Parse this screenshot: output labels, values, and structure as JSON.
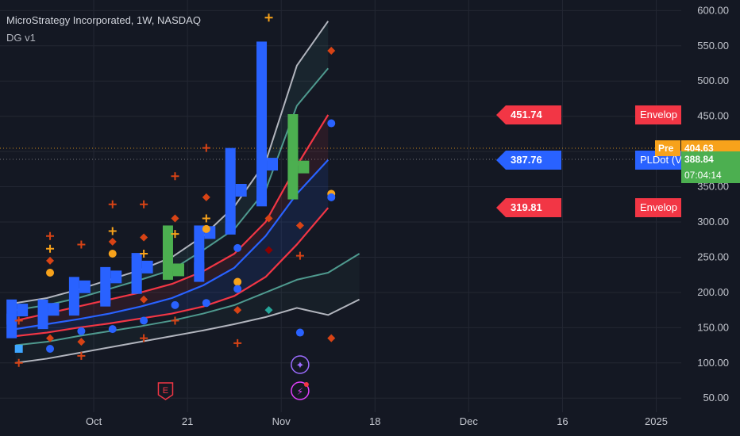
{
  "header": {
    "symbol_line": "MicroStrategy Incorporated, 1W, NASDAQ",
    "indicator_name": "DG v1"
  },
  "colors": {
    "background": "#141823",
    "grid": "#232733",
    "axis_text": "#c3c6ce",
    "bar_blue": "#2962ff",
    "bar_green": "#4caf50",
    "pldot": "#2962ff",
    "envelope_red": "#f23645",
    "band_teal": "#4f9a8f",
    "band_gray": "#b2b5be",
    "orange_marker": "#f7a21b",
    "dark_orange_marker": "#d84315",
    "price_line": "#f7a21b"
  },
  "chart_data": {
    "type": "line",
    "ylim": [
      30,
      615
    ],
    "y_ticks": [
      50,
      100,
      150,
      200,
      250,
      300,
      350,
      400,
      450,
      500,
      550,
      600
    ],
    "y_tick_labels": [
      "50.00",
      "100.00",
      "150.00",
      "200.00",
      "250.00",
      "300.00",
      "350.00",
      "400.00",
      "450.00",
      "500.00",
      "550.00",
      "600.00"
    ],
    "x_tick_labels": [
      "Oct",
      "21",
      "Nov",
      "18",
      "Dec",
      "16",
      "2025"
    ],
    "x_tick_index": [
      2.5,
      5.5,
      8.5,
      11.5,
      14.5,
      17.5,
      20.5
    ],
    "xlim": [
      -0.5,
      21.3
    ],
    "ohlc_bars": [
      {
        "open": 162,
        "high": 190,
        "low": 135,
        "close": 175,
        "color": "blue"
      },
      {
        "open": 165,
        "high": 190,
        "low": 148,
        "close": 176,
        "color": "blue"
      },
      {
        "open": 175,
        "high": 222,
        "low": 170,
        "close": 208,
        "color": "blue"
      },
      {
        "open": 192,
        "high": 236,
        "low": 180,
        "close": 222,
        "color": "blue"
      },
      {
        "open": 210,
        "high": 256,
        "low": 198,
        "close": 236,
        "color": "blue"
      },
      {
        "open": 238,
        "high": 295,
        "low": 218,
        "close": 232,
        "color": "green"
      },
      {
        "open": 235,
        "high": 295,
        "low": 215,
        "close": 285,
        "color": "blue"
      },
      {
        "open": 290,
        "high": 405,
        "low": 285,
        "close": 345,
        "color": "blue"
      },
      {
        "open": 330,
        "high": 556,
        "low": 330,
        "close": 382,
        "color": "blue"
      },
      {
        "open": 395,
        "high": 453,
        "low": 332,
        "close": 378,
        "color": "green"
      }
    ],
    "series": [
      {
        "name": "PLDot",
        "color": "#2962ff",
        "values": [
          148,
          155,
          162,
          170,
          180,
          192,
          210,
          235,
          280,
          340,
          388
        ]
      },
      {
        "name": "Envelope",
        "color": "#f23645",
        "values": [
          160,
          170,
          180,
          190,
          200,
          212,
          230,
          255,
          300,
          380,
          452
        ]
      },
      {
        "name": "Envelope",
        "color": "#f23645",
        "values": [
          138,
          143,
          150,
          156,
          163,
          170,
          180,
          195,
          222,
          268,
          320
        ]
      },
      {
        "color": "#4f9a8f",
        "values": [
          175,
          182,
          192,
          205,
          218,
          232,
          260,
          290,
          345,
          465,
          518
        ]
      },
      {
        "color": "#4f9a8f",
        "values": [
          125,
          130,
          138,
          145,
          152,
          160,
          170,
          182,
          200,
          218,
          228,
          255
        ]
      },
      {
        "color": "#b2b5be",
        "values": [
          185,
          192,
          204,
          218,
          232,
          250,
          280,
          322,
          385,
          522,
          585
        ]
      },
      {
        "color": "#b2b5be",
        "values": [
          100,
          106,
          114,
          122,
          130,
          138,
          146,
          155,
          165,
          178,
          168,
          190
        ]
      }
    ],
    "price_lines": [
      {
        "value": 404.63,
        "color": "#f7a21b"
      },
      {
        "value": 388.84,
        "color": "#8c8c8c"
      }
    ],
    "scatter_markers": [
      {
        "x": 0,
        "y": 120,
        "shape": "square",
        "color": "#3ea6ff"
      },
      {
        "x": 0,
        "y": 100,
        "shape": "plus",
        "color": "#d84315"
      },
      {
        "x": 0,
        "y": 160,
        "shape": "plus",
        "color": "#d84315"
      },
      {
        "x": 1,
        "y": 280,
        "shape": "plus",
        "color": "#d84315"
      },
      {
        "x": 1,
        "y": 262,
        "shape": "plus",
        "color": "#f7a21b"
      },
      {
        "x": 1,
        "y": 245,
        "shape": "diamond",
        "color": "#d84315"
      },
      {
        "x": 1,
        "y": 228,
        "shape": "circle",
        "color": "#f7a21b"
      },
      {
        "x": 1,
        "y": 120,
        "shape": "circle",
        "color": "#2962ff"
      },
      {
        "x": 1,
        "y": 135,
        "shape": "diamond",
        "color": "#d84315"
      },
      {
        "x": 2,
        "y": 268,
        "shape": "plus",
        "color": "#d84315"
      },
      {
        "x": 2,
        "y": 110,
        "shape": "plus",
        "color": "#d84315"
      },
      {
        "x": 2,
        "y": 145,
        "shape": "circle",
        "color": "#2962ff"
      },
      {
        "x": 2,
        "y": 130,
        "shape": "diamond",
        "color": "#d84315"
      },
      {
        "x": 3,
        "y": 325,
        "shape": "plus",
        "color": "#d84315"
      },
      {
        "x": 3,
        "y": 287,
        "shape": "plus",
        "color": "#f7a21b"
      },
      {
        "x": 3,
        "y": 272,
        "shape": "diamond",
        "color": "#d84315"
      },
      {
        "x": 3,
        "y": 255,
        "shape": "circle",
        "color": "#f7a21b"
      },
      {
        "x": 3,
        "y": 148,
        "shape": "circle",
        "color": "#2962ff"
      },
      {
        "x": 4,
        "y": 325,
        "shape": "plus",
        "color": "#d84315"
      },
      {
        "x": 4,
        "y": 278,
        "shape": "diamond",
        "color": "#d84315"
      },
      {
        "x": 4,
        "y": 255,
        "shape": "plus",
        "color": "#f7a21b"
      },
      {
        "x": 4,
        "y": 190,
        "shape": "diamond",
        "color": "#d84315"
      },
      {
        "x": 4,
        "y": 160,
        "shape": "circle",
        "color": "#2962ff"
      },
      {
        "x": 4,
        "y": 135,
        "shape": "plus",
        "color": "#d84315"
      },
      {
        "x": 5,
        "y": 365,
        "shape": "plus",
        "color": "#d84315"
      },
      {
        "x": 5,
        "y": 305,
        "shape": "diamond",
        "color": "#d84315"
      },
      {
        "x": 5,
        "y": 283,
        "shape": "plus",
        "color": "#f7a21b"
      },
      {
        "x": 5,
        "y": 182,
        "shape": "circle",
        "color": "#2962ff"
      },
      {
        "x": 5,
        "y": 160,
        "shape": "plus",
        "color": "#d84315"
      },
      {
        "x": 6,
        "y": 405,
        "shape": "plus",
        "color": "#d84315"
      },
      {
        "x": 6,
        "y": 335,
        "shape": "diamond",
        "color": "#d84315"
      },
      {
        "x": 6,
        "y": 305,
        "shape": "plus",
        "color": "#f7a21b"
      },
      {
        "x": 6,
        "y": 290,
        "shape": "circle",
        "color": "#f7a21b"
      },
      {
        "x": 6,
        "y": 185,
        "shape": "circle",
        "color": "#2962ff"
      },
      {
        "x": 7,
        "y": 263,
        "shape": "circle",
        "color": "#2962ff"
      },
      {
        "x": 7,
        "y": 215,
        "shape": "circle",
        "color": "#f7a21b"
      },
      {
        "x": 7,
        "y": 205,
        "shape": "circle",
        "color": "#2962ff"
      },
      {
        "x": 7,
        "y": 175,
        "shape": "diamond",
        "color": "#d84315"
      },
      {
        "x": 7,
        "y": 128,
        "shape": "plus",
        "color": "#d84315"
      },
      {
        "x": 8,
        "y": 590,
        "shape": "plus",
        "color": "#f7a21b"
      },
      {
        "x": 8,
        "y": 305,
        "shape": "diamond",
        "color": "#d84315"
      },
      {
        "x": 8,
        "y": 260,
        "shape": "diamond",
        "color": "#8b0000"
      },
      {
        "x": 8,
        "y": 175,
        "shape": "diamond",
        "color": "#26a69a"
      },
      {
        "x": 9,
        "y": 295,
        "shape": "diamond",
        "color": "#d84315"
      },
      {
        "x": 9,
        "y": 252,
        "shape": "plus",
        "color": "#d84315"
      },
      {
        "x": 9,
        "y": 143,
        "shape": "circle",
        "color": "#2962ff"
      },
      {
        "x": 10,
        "y": 543,
        "shape": "diamond",
        "color": "#d84315"
      },
      {
        "x": 10,
        "y": 440,
        "shape": "circle",
        "color": "#2962ff"
      },
      {
        "x": 10,
        "y": 340,
        "shape": "circle",
        "color": "#f7a21b"
      },
      {
        "x": 10,
        "y": 335,
        "shape": "circle",
        "color": "#2962ff"
      },
      {
        "x": 10,
        "y": 135,
        "shape": "diamond",
        "color": "#d84315"
      }
    ],
    "value_labels": [
      {
        "text": "451.74",
        "value": 451.74,
        "color": "#f23645"
      },
      {
        "text": "387.76",
        "value": 387.76,
        "color": "#2962ff"
      },
      {
        "text": "319.81",
        "value": 319.81,
        "color": "#f23645"
      }
    ],
    "axis_labels": [
      {
        "text": "Envelop",
        "value": 451.74,
        "color": "#f23645"
      },
      {
        "text": "PLDot (V",
        "value": 387.76,
        "color": "#2962ff"
      },
      {
        "text": "Envelop",
        "value": 319.81,
        "color": "#f23645"
      }
    ],
    "price_tags": [
      {
        "prefix": "Pre",
        "value_text": "404.63",
        "color": "#f7a21b"
      },
      {
        "value_text": "388.84",
        "countdown": "07:04:14",
        "color": "#4caf50"
      }
    ],
    "event_icons": [
      {
        "label": "E",
        "x": 5,
        "color": "#f23645"
      },
      {
        "label": "✦",
        "x": 9,
        "color": "#9c6cff"
      },
      {
        "label": "⚡",
        "x": 9,
        "color": "#e040fb"
      }
    ]
  }
}
